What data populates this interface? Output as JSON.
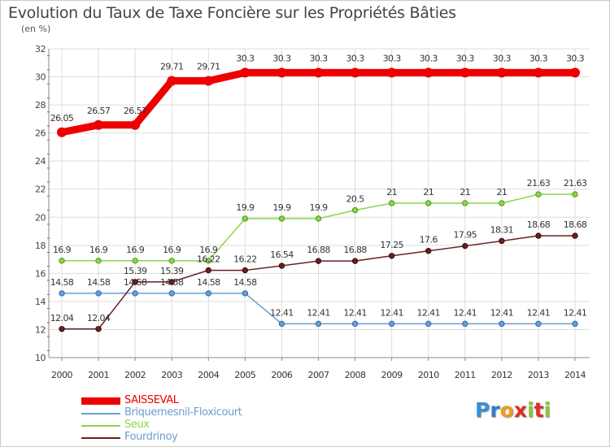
{
  "header": {
    "title": "Evolution du Taux de Taxe Foncière sur les Propriétés Bâties",
    "subtitle": "(en %)"
  },
  "brand": {
    "letters": [
      "P",
      "r",
      "o",
      "x",
      "i",
      "t",
      "i"
    ],
    "colors": [
      "#3a8fd6",
      "#2f7fc6",
      "#f09a1e",
      "#e0301e",
      "#8dc63f",
      "#e0301e",
      "#8dc63f"
    ]
  },
  "chart_data": {
    "type": "line",
    "title": "Evolution du Taux de Taxe Foncière sur les Propriétés Bâties",
    "ylabel": "(en %)",
    "xlabel": "",
    "ylim": [
      10,
      32
    ],
    "yticks": [
      10,
      12,
      14,
      16,
      18,
      20,
      22,
      24,
      26,
      28,
      30,
      32
    ],
    "x": [
      "2000",
      "2001",
      "2002",
      "2003",
      "2004",
      "2005",
      "2006",
      "2007",
      "2008",
      "2009",
      "2010",
      "2011",
      "2012",
      "2013",
      "2014"
    ],
    "grid": true,
    "legend_position": "bottom-left",
    "series": [
      {
        "name": "SAISSEVAL",
        "color": "#ee0000",
        "values": [
          26.05,
          26.57,
          26.57,
          29.71,
          29.71,
          30.3,
          30.3,
          30.3,
          30.3,
          30.3,
          30.3,
          30.3,
          30.3,
          30.3,
          30.3
        ],
        "labels": [
          "26.05",
          "26.57",
          "26.57",
          "29.71",
          "29.71",
          "30.3",
          "30.3",
          "30.3",
          "30.3",
          "30.3",
          "30.3",
          "30.3",
          "30.3",
          "30.3",
          "30.3"
        ]
      },
      {
        "name": "Briquemesnil-Floxicourt",
        "color": "#6a9ed0",
        "values": [
          14.58,
          14.58,
          14.58,
          14.58,
          14.58,
          14.58,
          12.41,
          12.41,
          12.41,
          12.41,
          12.41,
          12.41,
          12.41,
          12.41,
          12.41
        ],
        "labels": [
          "14.58",
          "14.58",
          "14.58",
          "14.58",
          "14.58",
          "14.58",
          "12.41",
          "12.41",
          "12.41",
          "12.41",
          "12.41",
          "12.41",
          "12.41",
          "12.41",
          "12.41"
        ]
      },
      {
        "name": "Seux",
        "color": "#8fd34a",
        "values": [
          16.9,
          16.9,
          16.9,
          16.9,
          16.9,
          19.9,
          19.9,
          19.9,
          20.5,
          21,
          21,
          21,
          21,
          21.63,
          21.63
        ],
        "labels": [
          "16.9",
          "16.9",
          "16.9",
          "16.9",
          "16.9",
          "19.9",
          "19.9",
          "19.9",
          "20.5",
          "21",
          "21",
          "21",
          "21",
          "21.63",
          "21.63"
        ]
      },
      {
        "name": "Fourdrinoy",
        "color": "#6b1e1e",
        "values": [
          12.04,
          12.04,
          15.39,
          15.39,
          16.22,
          16.22,
          16.54,
          16.88,
          16.88,
          17.25,
          17.6,
          17.95,
          18.31,
          18.68,
          18.68
        ],
        "labels": [
          "12.04",
          "12.04",
          "15.39",
          "15.39",
          "16.22",
          "16.22",
          "16.54",
          "16.88",
          "16.88",
          "17.25",
          "17.6",
          "17.95",
          "18.31",
          "18.68",
          "18.68"
        ]
      }
    ]
  }
}
